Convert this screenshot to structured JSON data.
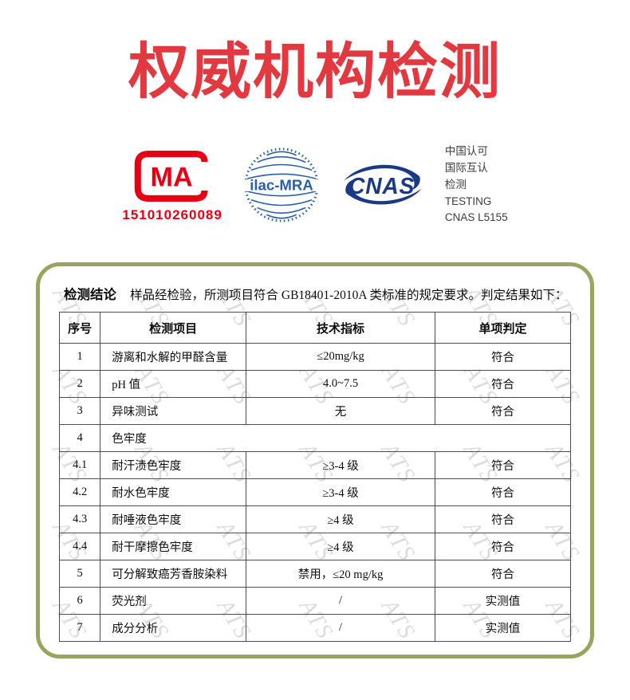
{
  "page": {
    "title": "权威机构检测",
    "title_color": "#e23940"
  },
  "certifications": {
    "cma": {
      "label": "MA",
      "number": "151010260089",
      "color": "#e60014"
    },
    "ilac": {
      "label": "ilac-MRA",
      "color": "#2b5fa7"
    },
    "cnas": {
      "label": "CNAS",
      "color": "#1b3a85",
      "lines": [
        "中国认可",
        "国际互认",
        "检测",
        "TESTING",
        "CNAS L5155"
      ]
    }
  },
  "report": {
    "border_color": "#9aa45e",
    "conclusion_label": "检测结论",
    "conclusion_text": "样品经检验，所测项目符合 GB18401-2010A 类标准的规定要求。判定结果如下：",
    "table": {
      "headers": [
        "序号",
        "检测项目",
        "技术指标",
        "单项判定"
      ],
      "rows": [
        {
          "no": "1",
          "item": "游离和水解的甲醛含量",
          "spec": "≤20mg/kg",
          "result": "符合"
        },
        {
          "no": "2",
          "item": "pH 值",
          "spec": "4.0~7.5",
          "result": "符合"
        },
        {
          "no": "3",
          "item": "异味测试",
          "spec": "无",
          "result": "符合"
        },
        {
          "no": "4",
          "item": "色牢度",
          "spec": "",
          "result": "",
          "colspan": 3
        },
        {
          "no": "4.1",
          "item": "耐汗渍色牢度",
          "spec": "≥3-4 级",
          "result": "符合"
        },
        {
          "no": "4.2",
          "item": "耐水色牢度",
          "spec": "≥3-4 级",
          "result": "符合"
        },
        {
          "no": "4.3",
          "item": "耐唾液色牢度",
          "spec": "≥4 级",
          "result": "符合"
        },
        {
          "no": "4.4",
          "item": "耐干摩擦色牢度",
          "spec": "≥4 级",
          "result": "符合"
        },
        {
          "no": "5",
          "item": "可分解致癌芳香胺染料",
          "spec": "禁用，≤20 mg/kg",
          "result": "符合"
        },
        {
          "no": "6",
          "item": "荧光剂",
          "spec": "/",
          "result": "实测值"
        },
        {
          "no": "7",
          "item": "成分分析",
          "spec": "/",
          "result": "实测值"
        }
      ]
    }
  },
  "watermark": {
    "text": "ATS",
    "count": 35
  }
}
